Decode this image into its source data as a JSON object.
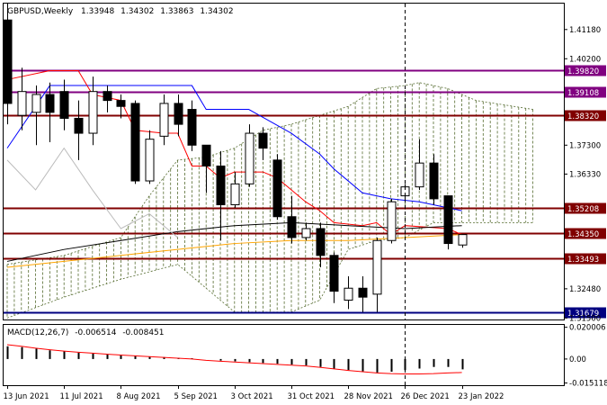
{
  "chart_data": {
    "type": "candlestick",
    "symbol": "GBPUSD",
    "timeframe": "Weekly",
    "ohlc_header": [
      "1.33948",
      "1.34302",
      "1.33863",
      "1.34302"
    ],
    "price_ylim": [
      1.3145,
      1.4205
    ],
    "price_ticks": [
      "1.41180",
      "1.40200",
      "1.37300",
      "1.36330",
      "1.32480",
      "1.31500"
    ],
    "x_labels": [
      "13 Jun 2021",
      "11 Jul 2021",
      "8 Aug 2021",
      "5 Sep 2021",
      "3 Oct 2021",
      "31 Oct 2021",
      "28 Nov 2021",
      "26 Dec 2021",
      "23 Jan 2022"
    ],
    "x_label_index": [
      0,
      4,
      8,
      12,
      16,
      20,
      24,
      28,
      32
    ],
    "candles": [
      {
        "o": 1.415,
        "h": 1.422,
        "l": 1.38,
        "c": 1.387
      },
      {
        "o": 1.383,
        "h": 1.399,
        "l": 1.378,
        "c": 1.391
      },
      {
        "o": 1.384,
        "h": 1.393,
        "l": 1.373,
        "c": 1.39
      },
      {
        "o": 1.39,
        "h": 1.394,
        "l": 1.374,
        "c": 1.384
      },
      {
        "o": 1.391,
        "h": 1.395,
        "l": 1.378,
        "c": 1.382
      },
      {
        "o": 1.382,
        "h": 1.388,
        "l": 1.368,
        "c": 1.377
      },
      {
        "o": 1.377,
        "h": 1.396,
        "l": 1.373,
        "c": 1.391
      },
      {
        "o": 1.391,
        "h": 1.393,
        "l": 1.384,
        "c": 1.388
      },
      {
        "o": 1.388,
        "h": 1.39,
        "l": 1.382,
        "c": 1.386
      },
      {
        "o": 1.387,
        "h": 1.388,
        "l": 1.36,
        "c": 1.361
      },
      {
        "o": 1.361,
        "h": 1.378,
        "l": 1.36,
        "c": 1.375
      },
      {
        "o": 1.376,
        "h": 1.39,
        "l": 1.373,
        "c": 1.387
      },
      {
        "o": 1.387,
        "h": 1.39,
        "l": 1.376,
        "c": 1.38
      },
      {
        "o": 1.385,
        "h": 1.388,
        "l": 1.371,
        "c": 1.373
      },
      {
        "o": 1.373,
        "h": 1.373,
        "l": 1.357,
        "c": 1.366
      },
      {
        "o": 1.366,
        "h": 1.371,
        "l": 1.341,
        "c": 1.353
      },
      {
        "o": 1.353,
        "h": 1.364,
        "l": 1.352,
        "c": 1.36
      },
      {
        "o": 1.36,
        "h": 1.38,
        "l": 1.359,
        "c": 1.377
      },
      {
        "o": 1.377,
        "h": 1.379,
        "l": 1.368,
        "c": 1.372
      },
      {
        "o": 1.368,
        "h": 1.37,
        "l": 1.348,
        "c": 1.349
      },
      {
        "o": 1.349,
        "h": 1.356,
        "l": 1.34,
        "c": 1.342
      },
      {
        "o": 1.342,
        "h": 1.347,
        "l": 1.341,
        "c": 1.345
      },
      {
        "o": 1.345,
        "h": 1.347,
        "l": 1.332,
        "c": 1.336
      },
      {
        "o": 1.336,
        "h": 1.337,
        "l": 1.32,
        "c": 1.324
      },
      {
        "o": 1.321,
        "h": 1.329,
        "l": 1.318,
        "c": 1.325
      },
      {
        "o": 1.325,
        "h": 1.329,
        "l": 1.317,
        "c": 1.322
      },
      {
        "o": 1.323,
        "h": 1.342,
        "l": 1.317,
        "c": 1.341
      },
      {
        "o": 1.341,
        "h": 1.355,
        "l": 1.34,
        "c": 1.354
      },
      {
        "o": 1.356,
        "h": 1.36,
        "l": 1.354,
        "c": 1.359
      },
      {
        "o": 1.359,
        "h": 1.375,
        "l": 1.358,
        "c": 1.367
      },
      {
        "o": 1.367,
        "h": 1.37,
        "l": 1.353,
        "c": 1.355
      },
      {
        "o": 1.356,
        "h": 1.356,
        "l": 1.338,
        "c": 1.34
      },
      {
        "o": 1.3395,
        "h": 1.343,
        "l": 1.3386,
        "c": 1.343
      }
    ],
    "horizontal_levels": [
      {
        "value": 1.3982,
        "label": "1.39820",
        "color": "#800080",
        "bg": "#800080",
        "fg": "#ffffff"
      },
      {
        "value": 1.391,
        "label": "1.39108",
        "color": "#800080",
        "bg": "#800080",
        "fg": "#ffffff"
      },
      {
        "value": 1.3832,
        "label": "1.38320",
        "color": "#800000",
        "bg": "#800000",
        "fg": "#ffffff"
      },
      {
        "value": 1.352,
        "label": "1.35208",
        "color": "#800000",
        "bg": "#800000",
        "fg": "#ffffff"
      },
      {
        "value": 1.3435,
        "label": "1.34350",
        "color": "#800000",
        "bg": "#800000",
        "fg": "#ffffff"
      },
      {
        "value": 1.3349,
        "label": "1.33493",
        "color": "#800000",
        "bg": "#800000",
        "fg": "#ffffff"
      },
      {
        "value": 1.3168,
        "label": "1.31679",
        "color": "#000080",
        "bg": "#000080",
        "fg": "#ffffff"
      }
    ],
    "overlays": [
      {
        "color": "#0000ff",
        "width": 1,
        "points": [
          [
            0,
            1.372
          ],
          [
            3,
            1.393
          ],
          [
            7,
            1.393
          ],
          [
            10,
            1.393
          ],
          [
            13,
            1.393
          ],
          [
            14,
            1.385
          ],
          [
            17,
            1.385
          ],
          [
            20,
            1.377
          ],
          [
            22,
            1.37
          ],
          [
            23,
            1.365
          ],
          [
            25,
            1.357
          ],
          [
            26,
            1.356
          ],
          [
            27,
            1.355
          ],
          [
            29,
            1.354
          ],
          [
            31,
            1.352
          ],
          [
            32,
            1.351
          ]
        ]
      },
      {
        "color": "#ff0000",
        "width": 1,
        "points": [
          [
            0,
            1.395
          ],
          [
            3,
            1.398
          ],
          [
            5,
            1.398
          ],
          [
            6,
            1.39
          ],
          [
            8,
            1.388
          ],
          [
            9,
            1.378
          ],
          [
            11,
            1.377
          ],
          [
            12,
            1.377
          ],
          [
            13,
            1.366
          ],
          [
            14,
            1.366
          ],
          [
            15,
            1.362
          ],
          [
            16,
            1.364
          ],
          [
            18,
            1.364
          ],
          [
            19,
            1.362
          ],
          [
            20,
            1.358
          ],
          [
            21,
            1.354
          ],
          [
            22,
            1.351
          ],
          [
            23,
            1.347
          ],
          [
            25,
            1.346
          ],
          [
            26,
            1.347
          ],
          [
            27,
            1.343
          ],
          [
            28,
            1.346
          ],
          [
            31,
            1.345
          ],
          [
            32,
            1.343
          ]
        ]
      },
      {
        "color": "#000000",
        "width": 1,
        "points": [
          [
            0,
            1.334
          ],
          [
            4,
            1.338
          ],
          [
            8,
            1.341
          ],
          [
            12,
            1.344
          ],
          [
            16,
            1.346
          ],
          [
            20,
            1.347
          ],
          [
            24,
            1.346
          ],
          [
            28,
            1.345
          ],
          [
            32,
            1.346
          ]
        ]
      },
      {
        "color": "#ffa500",
        "width": 1,
        "points": [
          [
            0,
            1.332
          ],
          [
            4,
            1.334
          ],
          [
            8,
            1.336
          ],
          [
            12,
            1.338
          ],
          [
            16,
            1.34
          ],
          [
            20,
            1.341
          ],
          [
            24,
            1.341
          ],
          [
            28,
            1.342
          ],
          [
            32,
            1.343
          ]
        ]
      },
      {
        "color": "#bbbbbb",
        "width": 1,
        "points": [
          [
            0,
            1.368
          ],
          [
            2,
            1.358
          ],
          [
            4,
            1.372
          ],
          [
            6,
            1.358
          ],
          [
            8,
            1.345
          ],
          [
            10,
            1.35
          ],
          [
            12,
            1.342
          ]
        ]
      }
    ],
    "cloud": {
      "color": "#556b2f",
      "span_a": [
        [
          0,
          1.333
        ],
        [
          4,
          1.336
        ],
        [
          8,
          1.342
        ],
        [
          10,
          1.356
        ],
        [
          12,
          1.368
        ],
        [
          14,
          1.369
        ],
        [
          16,
          1.372
        ],
        [
          18,
          1.378
        ],
        [
          20,
          1.38
        ],
        [
          22,
          1.383
        ],
        [
          24,
          1.386
        ],
        [
          26,
          1.392
        ],
        [
          28,
          1.393
        ],
        [
          29,
          1.394
        ],
        [
          31,
          1.392
        ],
        [
          33,
          1.388
        ],
        [
          37,
          1.385
        ]
      ],
      "span_b": [
        [
          0,
          1.315
        ],
        [
          4,
          1.322
        ],
        [
          8,
          1.328
        ],
        [
          12,
          1.333
        ],
        [
          16,
          1.317
        ],
        [
          20,
          1.317
        ],
        [
          22,
          1.321
        ],
        [
          24,
          1.338
        ],
        [
          26,
          1.341
        ],
        [
          28,
          1.342
        ],
        [
          30,
          1.347
        ],
        [
          32,
          1.347
        ],
        [
          37,
          1.347
        ]
      ]
    },
    "current_week_index": 28,
    "macd": {
      "title": "MACD(12,26,7)",
      "values_text": [
        "-0.006514",
        "-0.008451"
      ],
      "ylim": [
        -0.0165,
        0.0215
      ],
      "ticks": [
        "0.020006",
        "0.00",
        "-0.015118"
      ],
      "histogram": [
        0.008,
        0.0075,
        0.0065,
        0.0055,
        0.0048,
        0.004,
        0.0035,
        0.003,
        0.0025,
        0.002,
        0.0015,
        0.0012,
        0.0008,
        0.0005,
        0.0,
        -0.001,
        -0.0015,
        -0.002,
        -0.0025,
        -0.003,
        -0.0035,
        -0.004,
        -0.005,
        -0.006,
        -0.007,
        -0.0078,
        -0.0085,
        -0.008,
        -0.007,
        -0.006,
        -0.005,
        -0.005,
        -0.0065
      ],
      "signal": [
        0.009,
        0.008,
        0.0068,
        0.0058,
        0.005,
        0.0043,
        0.0037,
        0.0031,
        0.0025,
        0.002,
        0.0015,
        0.001,
        0.0005,
        0.0,
        -0.0008,
        -0.0014,
        -0.0019,
        -0.0024,
        -0.0029,
        -0.0034,
        -0.0039,
        -0.0044,
        -0.0052,
        -0.0062,
        -0.0072,
        -0.008,
        -0.0088,
        -0.0092,
        -0.0094,
        -0.0094,
        -0.0092,
        -0.0088,
        -0.0085
      ]
    }
  }
}
